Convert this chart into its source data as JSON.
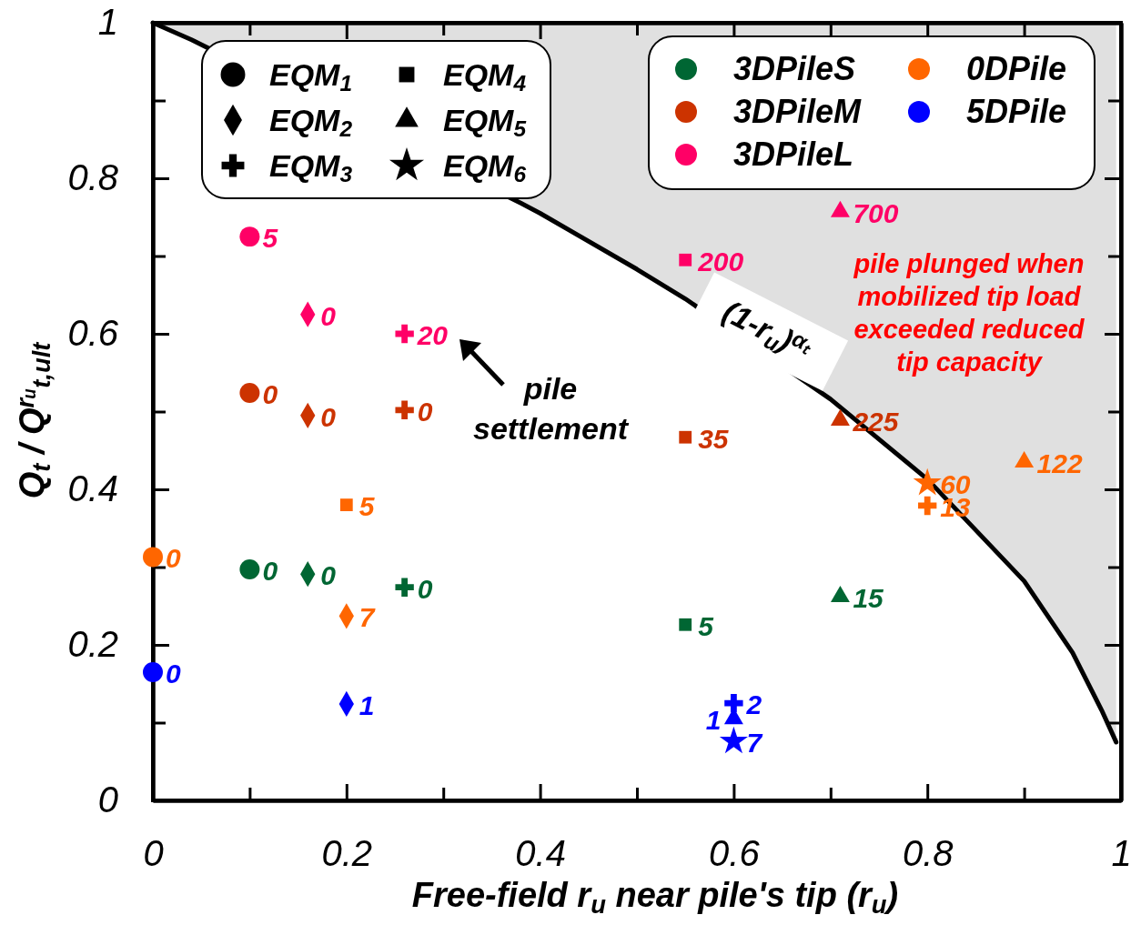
{
  "chart_data": {
    "type": "scatter",
    "xlabel": "Free-field r$_{u}$ near pile's tip (r$_{u}$)",
    "ylabel": "Q$_{t}$ / Q$^{rᵤ}$$_{t,ult}$",
    "xlim": [
      0,
      1
    ],
    "ylim": [
      0,
      1
    ],
    "xticks": [
      0,
      0.2,
      0.4,
      0.6,
      0.8,
      1
    ],
    "yticks": [
      0,
      0.2,
      0.4,
      0.6,
      0.8,
      1
    ],
    "grid": false,
    "legend": "top right",
    "series": [
      {
        "type": "line",
        "color": "#000000",
        "x": [
          0,
          0.04,
          0.38,
          0.4,
          0.5,
          0.55,
          0.7,
          0.8,
          0.9,
          0.95,
          0.98,
          0.995
        ],
        "values": [
          1,
          0.978,
          0.768,
          0.755,
          0.683,
          0.645,
          0.516,
          0.413,
          0.282,
          0.19,
          0.116,
          0.075
        ],
        "lower": [
          1,
          0.978,
          0.768,
          0.755,
          0.683,
          0.645,
          0.516,
          0.413,
          0.282,
          0.19,
          0.116,
          0.075
        ],
        "upper": [
          1,
          1,
          1,
          1,
          1,
          1,
          1,
          1,
          1,
          1,
          1,
          1
        ]
      },
      {
        "name": "3DPileS",
        "color": "#006633",
        "marker": "circle",
        "x": [
          0.1
        ],
        "values": [
          0.297
        ]
      },
      {
        "color": "#006633",
        "marker": "diamond",
        "x": [
          0.16
        ],
        "values": [
          0.291
        ]
      },
      {
        "color": "#006633",
        "marker": "cross",
        "x": [
          0.26
        ],
        "values": [
          0.274
        ]
      },
      {
        "color": "#006633",
        "marker": "square",
        "x": [
          0.55
        ],
        "values": [
          0.226
        ]
      },
      {
        "color": "#006633",
        "marker": "triangle",
        "x": [
          0.71
        ],
        "values": [
          0.262
        ]
      },
      {
        "name": "3DPileM",
        "color": "#cc3300",
        "marker": "circle",
        "x": [
          0.1
        ],
        "values": [
          0.524
        ]
      },
      {
        "color": "#cc3300",
        "marker": "diamond",
        "x": [
          0.16
        ],
        "values": [
          0.495
        ]
      },
      {
        "color": "#cc3300",
        "marker": "cross",
        "x": [
          0.26
        ],
        "values": [
          0.502
        ]
      },
      {
        "color": "#cc3300",
        "marker": "square",
        "x": [
          0.55
        ],
        "values": [
          0.467
        ]
      },
      {
        "color": "#cc3300",
        "marker": "triangle",
        "x": [
          0.71
        ],
        "values": [
          0.489
        ]
      },
      {
        "name": "3DPileL",
        "color": "#ff0066",
        "marker": "circle",
        "x": [
          0.1
        ],
        "values": [
          0.725
        ]
      },
      {
        "color": "#ff0066",
        "marker": "diamond",
        "x": [
          0.16
        ],
        "values": [
          0.625
        ]
      },
      {
        "color": "#ff0066",
        "marker": "cross",
        "x": [
          0.26
        ],
        "values": [
          0.6
        ]
      },
      {
        "color": "#ff0066",
        "marker": "square",
        "x": [
          0.55
        ],
        "values": [
          0.695
        ]
      },
      {
        "color": "#ff0066",
        "marker": "triangle",
        "x": [
          0.71
        ],
        "values": [
          0.757
        ]
      },
      {
        "name": "0DPile",
        "color": "#ff6600",
        "marker": "circle",
        "x": [
          0
        ],
        "values": [
          0.313
        ]
      },
      {
        "color": "#ff6600",
        "marker": "square",
        "x": [
          0.2
        ],
        "values": [
          0.38
        ]
      },
      {
        "color": "#ff6600",
        "marker": "diamond",
        "x": [
          0.2
        ],
        "values": [
          0.237
        ]
      },
      {
        "color": "#ff6600",
        "marker": "triangle",
        "x": [
          0.9
        ],
        "values": [
          0.435
        ]
      },
      {
        "color": "#ff6600",
        "marker": "star",
        "x": [
          0.8
        ],
        "values": [
          0.408
        ]
      },
      {
        "color": "#ff6600",
        "marker": "cross",
        "x": [
          0.8
        ],
        "values": [
          0.379
        ]
      },
      {
        "name": "5DPile",
        "color": "#0000ff",
        "marker": "circle",
        "x": [
          0
        ],
        "values": [
          0.165
        ]
      },
      {
        "color": "#0000ff",
        "marker": "diamond",
        "x": [
          0.2
        ],
        "values": [
          0.124
        ]
      },
      {
        "color": "#0000ff",
        "marker": "cross",
        "x": [
          0.6
        ],
        "values": [
          0.125
        ]
      },
      {
        "color": "#0000ff",
        "marker": "triangle",
        "x": [
          0.6
        ],
        "values": [
          0.105
        ]
      },
      {
        "color": "#0000ff",
        "marker": "star",
        "x": [
          0.6
        ],
        "values": [
          0.076
        ]
      }
    ],
    "annotations": [
      {
        "text": "0",
        "x": 0.1,
        "y": 0.297
      },
      {
        "text": "0",
        "x": 0.16,
        "y": 0.291
      },
      {
        "text": "0",
        "x": 0.26,
        "y": 0.274
      },
      {
        "text": "5",
        "x": 0.55,
        "y": 0.226
      },
      {
        "text": "15",
        "x": 0.71,
        "y": 0.262
      },
      {
        "text": "0",
        "x": 0.1,
        "y": 0.524
      },
      {
        "text": "0",
        "x": 0.16,
        "y": 0.495
      },
      {
        "text": "0",
        "x": 0.26,
        "y": 0.502
      },
      {
        "text": "35",
        "x": 0.55,
        "y": 0.467
      },
      {
        "text": "225",
        "x": 0.71,
        "y": 0.489
      },
      {
        "text": "5",
        "x": 0.1,
        "y": 0.725
      },
      {
        "text": "0",
        "x": 0.16,
        "y": 0.625
      },
      {
        "text": "20",
        "x": 0.26,
        "y": 0.6
      },
      {
        "text": "200",
        "x": 0.55,
        "y": 0.695
      },
      {
        "text": "700",
        "x": 0.71,
        "y": 0.757
      },
      {
        "text": "0",
        "x": 0,
        "y": 0.313
      },
      {
        "text": "5",
        "x": 0.2,
        "y": 0.38
      },
      {
        "text": "7",
        "x": 0.2,
        "y": 0.237
      },
      {
        "text": "122",
        "x": 0.9,
        "y": 0.435
      },
      {
        "text": "60",
        "x": 0.8,
        "y": 0.408
      },
      {
        "text": "13",
        "x": 0.8,
        "y": 0.379
      },
      {
        "text": "0",
        "x": 0,
        "y": 0.165
      },
      {
        "text": "1",
        "x": 0.2,
        "y": 0.124
      },
      {
        "text": "2",
        "x": 0.6,
        "y": 0.125
      },
      {
        "text": "1",
        "x": 0.6,
        "y": 0.105
      },
      {
        "text": "7",
        "x": 0.6,
        "y": 0.076
      },
      "EQM$_{1}$",
      "EQM$_{2}$",
      "EQM$_{3}$",
      "EQM$_{4}$",
      "EQM$_{5}$",
      "EQM$_{6}$",
      "(1-r$_{u}$)$^{αₜ}$",
      "pile settlement",
      "pile plunged when mobilized tip load exceeded reduced tip capacity"
    ]
  }
}
